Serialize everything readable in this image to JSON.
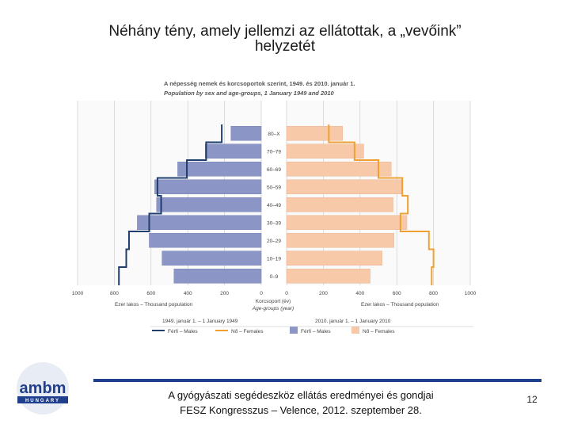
{
  "slide": {
    "title_line1": "Néhány tény, amely jellemzi az ellátottak, a „vevőink”",
    "title_line2": "helyzetét",
    "footer_line1": "A gyógyászati segédeszköz ellátás eredményei és gondjai",
    "footer_line2": "FESZ Kongresszus – Velence, 2012. szeptember 28.",
    "page_number": "12",
    "logo_text": "ambm",
    "logo_subtext": "HUNGARY"
  },
  "colors": {
    "male_bar": "#8c96c6",
    "female_bar": "#f8c9a8",
    "male_line": "#1f3e6e",
    "female_line": "#f0a030",
    "footer_rule": "#1f3e8c"
  },
  "chart_data": {
    "type": "bar",
    "orientation": "horizontal-pyramid",
    "title": "A népesség nemek és korcsoportok szerint, 1949. és 2010. január 1.",
    "subtitle": "Population by sex and age-groups, 1 January 1949 and 2010",
    "categories": [
      "0–9",
      "10–19",
      "20–29",
      "30–39",
      "40–49",
      "50–59",
      "60–69",
      "70–79",
      "80–X"
    ],
    "category_axis_label": "Korcsoport (év)",
    "category_axis_label_en": "Age-groups (year)",
    "x_ticks_left": [
      "1000",
      "800",
      "600",
      "400",
      "200",
      "0"
    ],
    "x_ticks_right": [
      "0",
      "200",
      "400",
      "600",
      "800",
      "1000"
    ],
    "xlim": [
      0,
      1000
    ],
    "x_axis_label_left": "Ezer lakos – Thousand population",
    "x_axis_label_right": "Ezer lakos – Thousand population",
    "grid": true,
    "legend": {
      "title_left": "1949. január 1. – 1 January 1949",
      "title_right": "2010. január 1. – 1 January 2010",
      "items": [
        "Férfi – Males",
        "Nő – Females",
        "Férfi – Males",
        "Nő – Females"
      ]
    },
    "series": [
      {
        "name": "Férfi – Males",
        "year": "2010",
        "style": "bar",
        "values": [
          475,
          540,
          610,
          675,
          570,
          580,
          455,
          305,
          165
        ]
      },
      {
        "name": "Nő – Females",
        "year": "2010",
        "style": "bar",
        "values": [
          455,
          520,
          585,
          655,
          580,
          630,
          570,
          420,
          305
        ]
      },
      {
        "name": "Férfi – Males",
        "year": "1949",
        "style": "step-line",
        "values": [
          775,
          735,
          720,
          610,
          545,
          565,
          405,
          300,
          215
        ]
      },
      {
        "name": "Nő – Females",
        "year": "1949",
        "style": "step-line",
        "values": [
          790,
          800,
          775,
          620,
          660,
          630,
          500,
          370,
          230
        ]
      }
    ]
  }
}
